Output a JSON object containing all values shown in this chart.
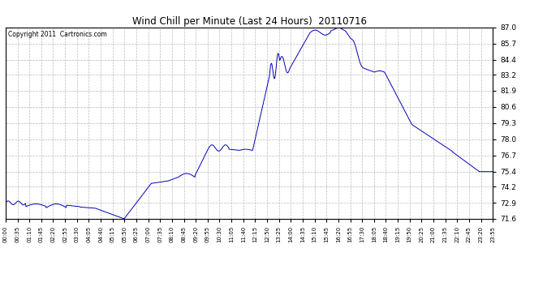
{
  "title": "Wind Chill per Minute (Last 24 Hours)  20110716",
  "copyright_text": "Copyright 2011  Cartronics.com",
  "line_color": "#0000bb",
  "background_color": "#ffffff",
  "grid_color": "#bbbbbb",
  "ylim": [
    71.6,
    87.0
  ],
  "yticks": [
    71.6,
    72.9,
    74.2,
    75.4,
    76.7,
    78.0,
    79.3,
    80.6,
    81.9,
    83.2,
    84.4,
    85.7,
    87.0
  ],
  "xtick_labels": [
    "00:00",
    "00:35",
    "01:10",
    "01:45",
    "02:20",
    "02:55",
    "03:30",
    "04:05",
    "04:40",
    "05:15",
    "05:50",
    "06:25",
    "07:00",
    "07:35",
    "08:10",
    "08:45",
    "09:20",
    "09:55",
    "10:30",
    "11:05",
    "11:40",
    "12:15",
    "12:50",
    "13:25",
    "14:00",
    "14:35",
    "15:10",
    "15:45",
    "16:20",
    "16:55",
    "17:30",
    "18:05",
    "18:40",
    "19:15",
    "19:50",
    "20:25",
    "21:00",
    "21:35",
    "22:10",
    "22:45",
    "23:20",
    "23:55"
  ],
  "figsize": [
    6.9,
    3.75
  ],
  "dpi": 100
}
